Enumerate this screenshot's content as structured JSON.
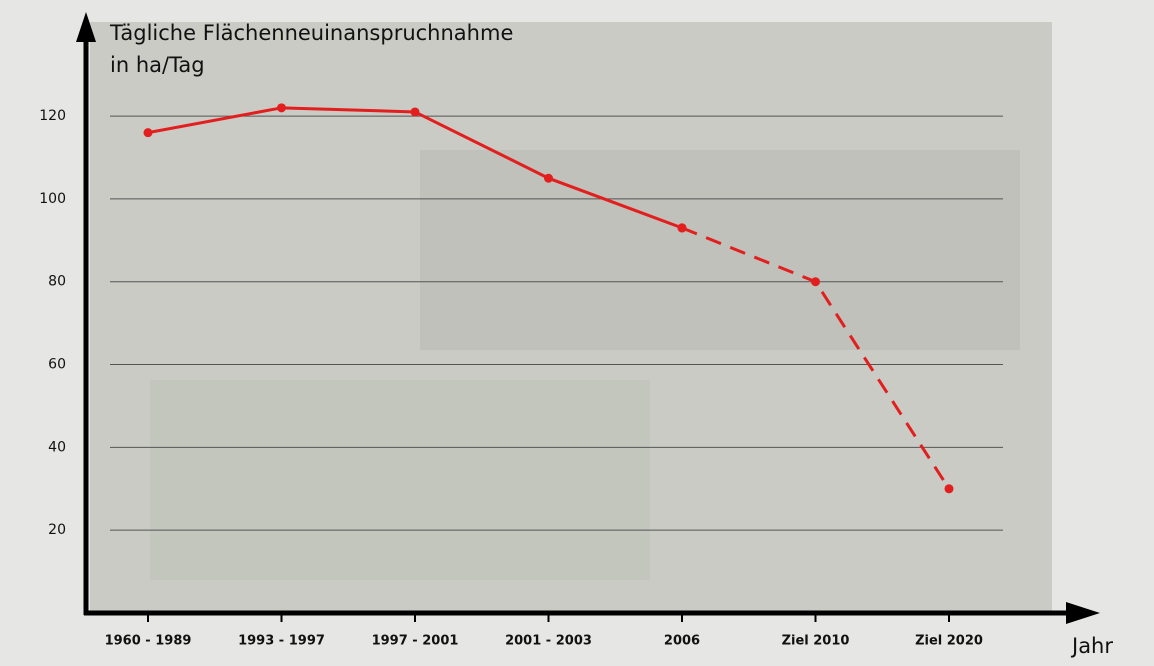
{
  "chart_data": {
    "type": "line",
    "title": "Tägliche Flächenneuinanspruchnahme",
    "subtitle": "in ha/Tag",
    "x_label": "Jahr",
    "categories": [
      "1960 - 1989",
      "1993 - 1997",
      "1997 - 2001",
      "2001 - 2003",
      "2006",
      "Ziel 2010",
      "Ziel 2020"
    ],
    "series": [
      {
        "color": "#e31e1e",
        "dash": "solid",
        "values": [
          116,
          122,
          121,
          105,
          93,
          null,
          null
        ]
      },
      {
        "color": "#e31e1e",
        "dash": "dashed",
        "values": [
          null,
          null,
          null,
          null,
          93,
          80,
          30
        ]
      }
    ],
    "ylim": [
      0,
      142
    ],
    "yticks": [
      20,
      40,
      60,
      80,
      100,
      120
    ],
    "grid": true
  }
}
